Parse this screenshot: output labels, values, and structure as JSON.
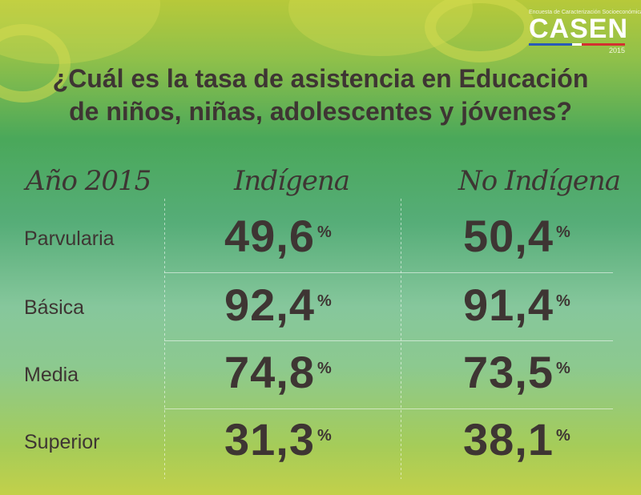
{
  "brand": {
    "subtitle": "Encuesta de Caracterización Socioeconómica",
    "name": "CASEN",
    "year": "2015"
  },
  "title": {
    "line1": "¿Cuál es la tasa de asistencia en Educación",
    "line2": "de niños, niñas, adolescentes y jóvenes?"
  },
  "table": {
    "headers": [
      "Año 2015",
      "Indígena",
      "No Indígena"
    ],
    "rows": [
      {
        "label": "Parvularia",
        "indigena": "49,6",
        "no_indigena": "50,4"
      },
      {
        "label": "Básica",
        "indigena": "92,4",
        "no_indigena": "91,4"
      },
      {
        "label": "Media",
        "indigena": "74,8",
        "no_indigena": "73,5"
      },
      {
        "label": "Superior",
        "indigena": "31,3",
        "no_indigena": "38,1"
      }
    ],
    "unit": "%"
  },
  "colors": {
    "text": "#3e3533",
    "background_top": "#b7c93a",
    "background_mid": "#56ad78"
  }
}
